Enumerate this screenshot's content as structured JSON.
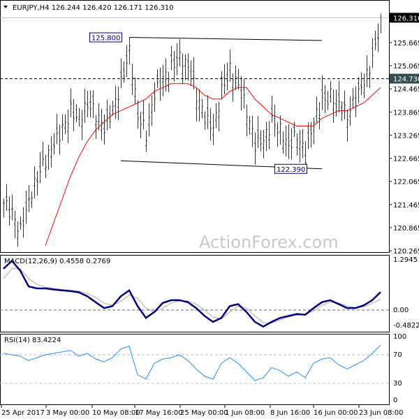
{
  "header": {
    "symbol": "EURJPY,H4",
    "ohlc": "126.244 126.420 126.171 126.310"
  },
  "watermark": "ActionForex.com",
  "colors": {
    "bars": "#1a3a4a",
    "ma": "#ff0000",
    "macd": "#000080",
    "signal": "#aaaaaa",
    "rsi": "#1e90ff",
    "current_price_bg": "#000000",
    "level_bg": "#2f4f4f"
  },
  "chart_data": [
    {
      "type": "ohlc",
      "title": "EURJPY,H4",
      "x_tick_labels": [
        "25 Apr 2017",
        "3 May 00:00",
        "10 May 08:00",
        "17 May 16:00",
        "25 May 00:00",
        "1 Jun 08:00",
        "8 Jun 16:00",
        "16 Jun 00:00",
        "23 Jun 08:00"
      ],
      "y_tick_labels": [
        "125.665",
        "125.065",
        "124.465",
        "123.865",
        "123.265",
        "122.665",
        "122.065",
        "121.465",
        "120.865",
        "120.265"
      ],
      "ylim": [
        120.265,
        126.31
      ],
      "current_price": "126.310",
      "level_marker": "124.730",
      "closes": [
        121.5,
        121.2,
        120.8,
        121.6,
        122.2,
        122.6,
        123.0,
        123.4,
        123.9,
        123.7,
        124.1,
        123.8,
        123.4,
        123.9,
        124.6,
        125.5,
        123.8,
        123.3,
        124.3,
        124.7,
        125.0,
        125.3,
        125.1,
        124.3,
        123.7,
        123.4,
        124.4,
        125.0,
        124.6,
        123.9,
        123.0,
        123.1,
        123.6,
        123.4,
        123.0,
        123.3,
        122.7,
        123.6,
        124.1,
        124.3,
        124.1,
        123.8,
        124.2,
        124.6,
        125.2,
        126.31
      ],
      "moving_average": [
        null,
        null,
        null,
        null,
        null,
        120.4,
        121.0,
        121.6,
        122.2,
        122.7,
        123.1,
        123.4,
        123.6,
        123.8,
        123.9,
        124.0,
        124.1,
        124.2,
        124.4,
        124.5,
        124.6,
        124.6,
        124.6,
        124.5,
        124.3,
        124.2,
        124.2,
        124.4,
        124.5,
        124.5,
        124.2,
        124.0,
        123.8,
        123.7,
        123.6,
        123.5,
        123.5,
        123.5,
        123.7,
        123.8,
        123.9,
        123.9,
        124.0,
        124.1,
        124.3,
        124.5
      ],
      "annotations": [
        {
          "label": "125.800",
          "trendline": "resistance",
          "from": [
            15,
            125.8
          ],
          "to": [
            38,
            125.72
          ]
        },
        {
          "label": "122.390",
          "trendline": "support",
          "from": [
            14,
            122.6
          ],
          "to": [
            38,
            122.39
          ]
        }
      ]
    },
    {
      "type": "line",
      "title": "MACD(12,26,9) 0.4558 0.2769",
      "y_tick_labels": [
        "1.2945",
        "0.00",
        "-0.4822"
      ],
      "ylim": [
        -0.4822,
        1.2945
      ],
      "macd": [
        1.05,
        1.25,
        1.0,
        0.6,
        0.55,
        0.55,
        0.52,
        0.5,
        0.48,
        0.45,
        0.35,
        0.2,
        0.05,
        0.1,
        0.35,
        0.5,
        0.1,
        -0.2,
        -0.05,
        0.18,
        0.25,
        0.25,
        0.2,
        0.05,
        -0.15,
        -0.3,
        -0.2,
        0.1,
        0.15,
        -0.05,
        -0.3,
        -0.42,
        -0.3,
        -0.2,
        -0.15,
        -0.1,
        -0.12,
        0.05,
        0.2,
        0.25,
        0.15,
        0.05,
        0.05,
        0.12,
        0.25,
        0.4558
      ],
      "signal": [
        0.8,
        1.05,
        1.05,
        0.8,
        0.65,
        0.58,
        0.55,
        0.52,
        0.5,
        0.48,
        0.42,
        0.32,
        0.18,
        0.12,
        0.22,
        0.38,
        0.3,
        0.05,
        -0.05,
        0.05,
        0.18,
        0.23,
        0.23,
        0.15,
        0.0,
        -0.18,
        -0.22,
        -0.05,
        0.1,
        0.05,
        -0.15,
        -0.32,
        -0.33,
        -0.25,
        -0.18,
        -0.13,
        -0.12,
        -0.02,
        0.12,
        0.2,
        0.18,
        0.1,
        0.06,
        0.08,
        0.16,
        0.2769
      ]
    },
    {
      "type": "line",
      "title": "RSI(14) 83.4224",
      "y_tick_labels": [
        "100",
        "70",
        "30",
        "0"
      ],
      "ylim": [
        0,
        100
      ],
      "levels": [
        70,
        30
      ],
      "rsi": [
        72,
        70,
        68,
        62,
        66,
        70,
        72,
        74,
        76,
        68,
        72,
        64,
        60,
        66,
        78,
        82,
        42,
        36,
        58,
        64,
        66,
        70,
        62,
        50,
        40,
        36,
        58,
        66,
        58,
        46,
        34,
        38,
        52,
        48,
        40,
        46,
        38,
        58,
        64,
        66,
        56,
        50,
        56,
        62,
        72,
        83.4224
      ]
    }
  ]
}
